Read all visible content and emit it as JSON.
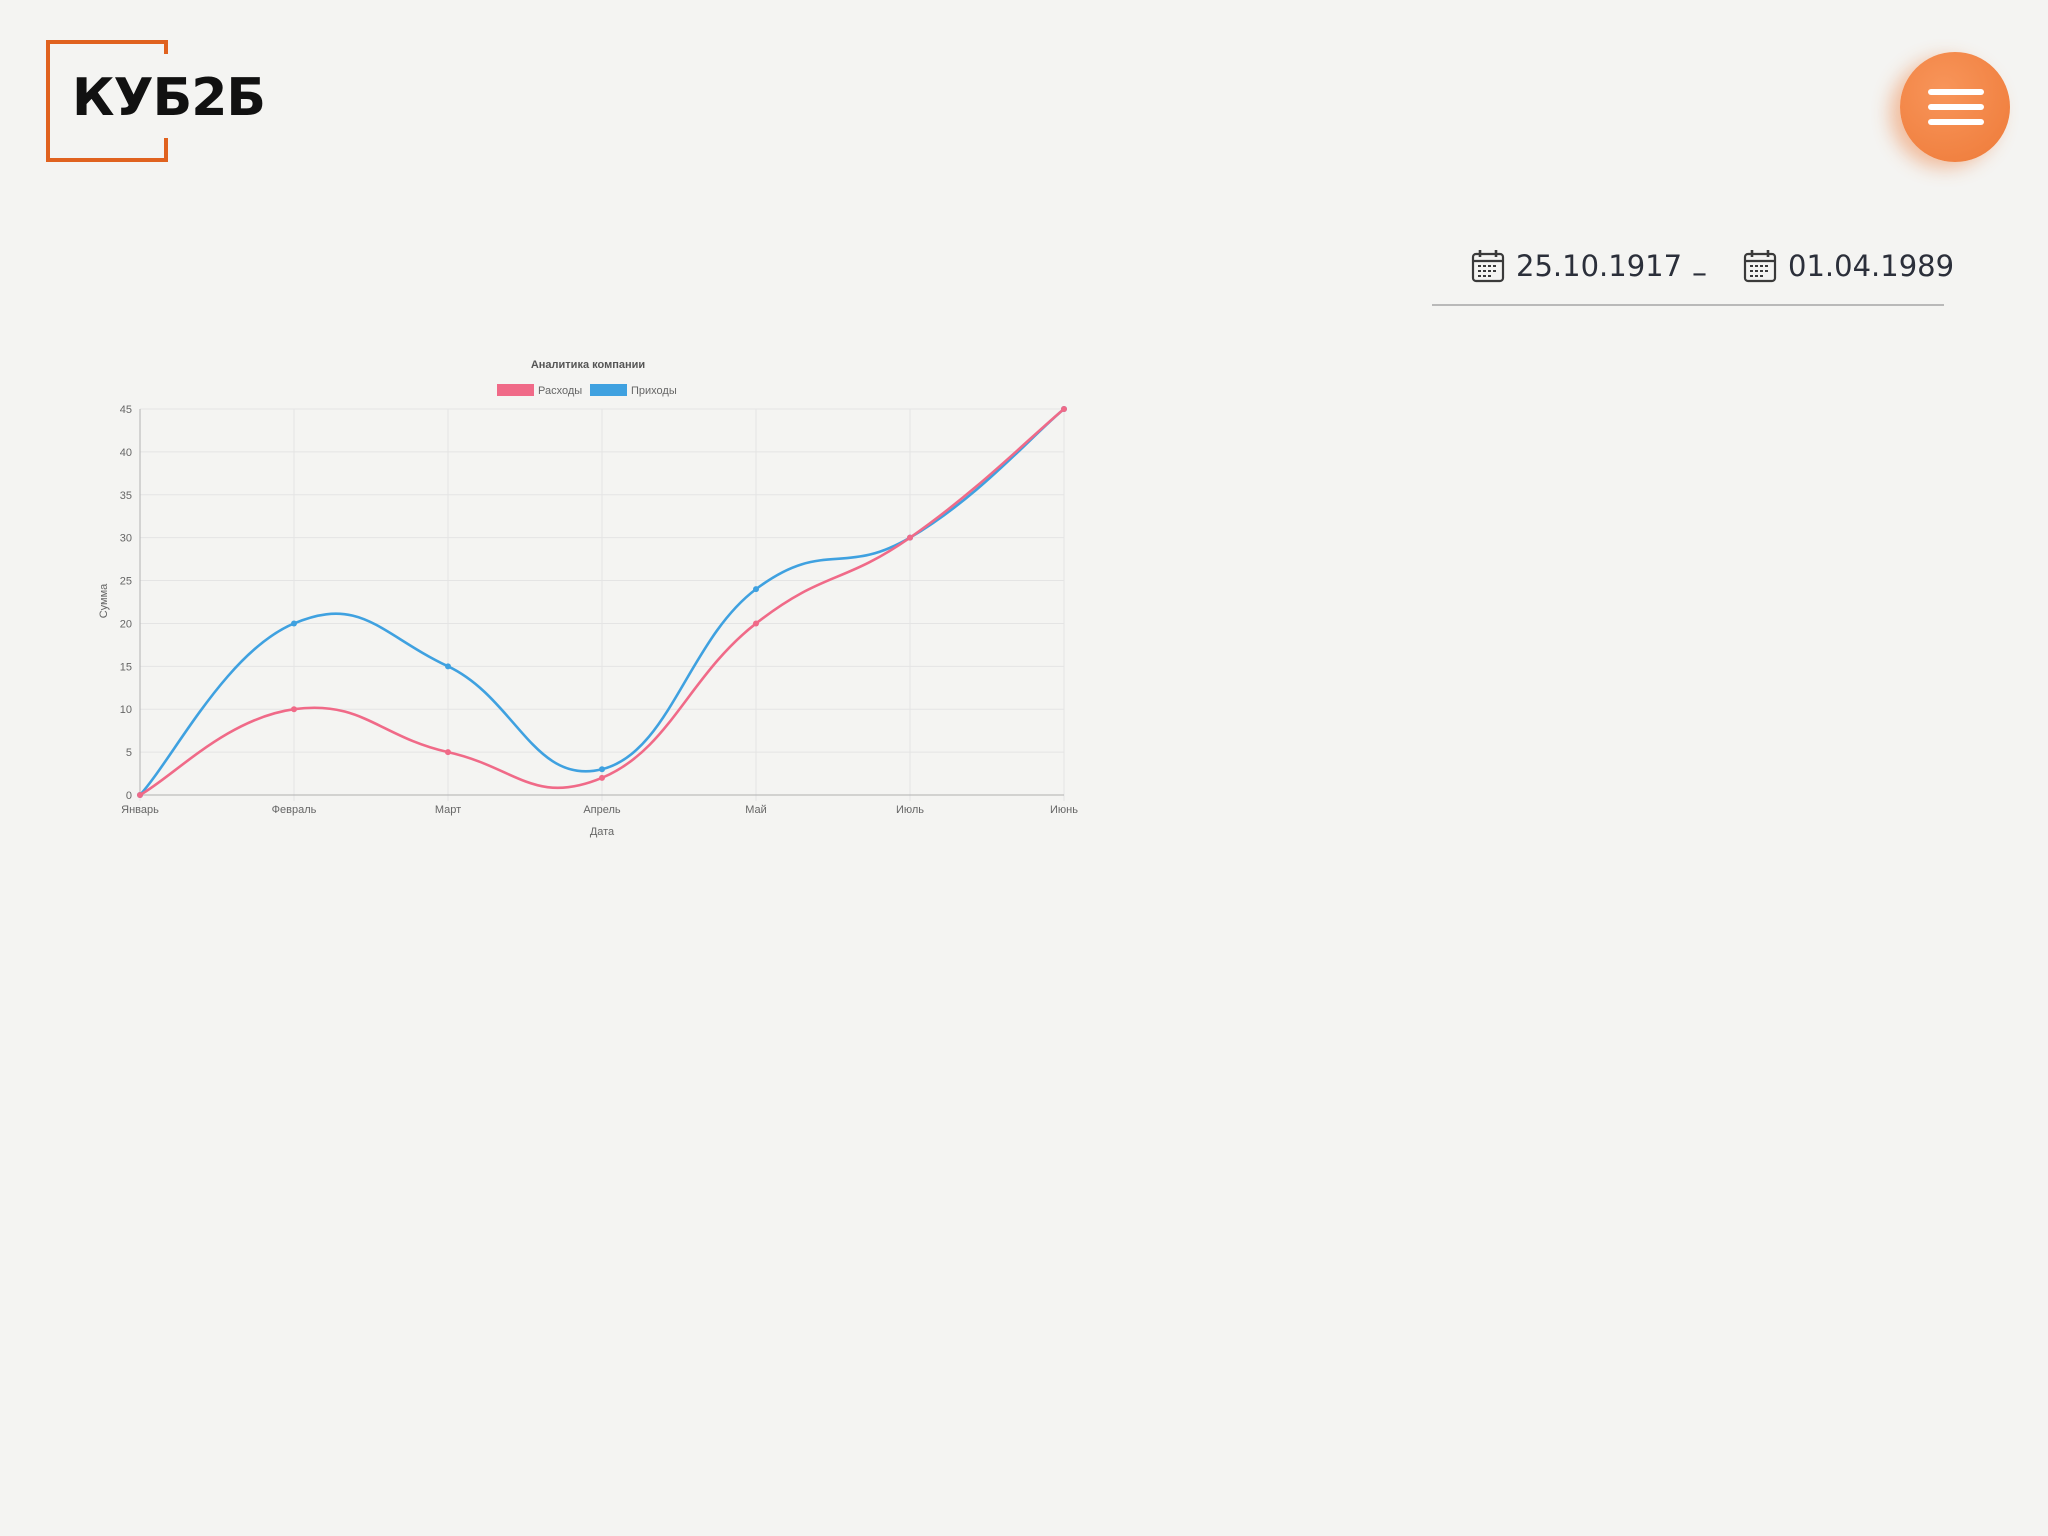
{
  "logo": {
    "text": "КУБ2Б",
    "accent": "#e0621f"
  },
  "menu": {
    "icon": "hamburger-menu-icon",
    "color": "#ee7a38"
  },
  "date_range": {
    "start": "25.10.1917",
    "separator": "–",
    "end": "01.04.1989",
    "icon": "calendar-icon"
  },
  "chart_data": {
    "type": "line",
    "title": "Аналитика компании",
    "xlabel": "Дата",
    "ylabel": "Сумма",
    "categories": [
      "Январь",
      "Февраль",
      "Март",
      "Апрель",
      "Май",
      "Июль",
      "Июнь"
    ],
    "ylim": [
      0,
      45
    ],
    "yticks": [
      0,
      5,
      10,
      15,
      20,
      25,
      30,
      35,
      40,
      45
    ],
    "grid": true,
    "legend_position": "top",
    "series": [
      {
        "name": "Расходы",
        "color": "#f06a88",
        "values": [
          0,
          10,
          5,
          2,
          20,
          30,
          45
        ]
      },
      {
        "name": "Приходы",
        "color": "#3fa1e0",
        "values": [
          0,
          20,
          15,
          3,
          24,
          30,
          45
        ]
      }
    ]
  }
}
